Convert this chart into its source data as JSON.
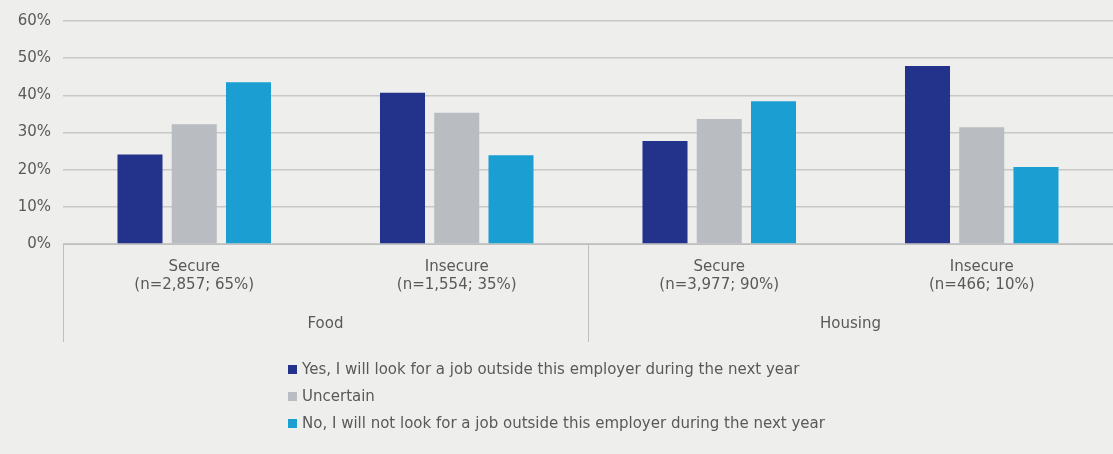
{
  "chart_data": {
    "type": "bar",
    "categories": [
      "Secure\n(n=2,857; 65%)",
      "Insecure\n(n=1,554; 35%)",
      "Secure\n(n=3,977; 90%)",
      "Insecure\n(n=466; 10%)"
    ],
    "annotations": [
      "Food",
      "Housing"
    ],
    "series": [
      {
        "name": "Yes, I will look for a job outside this employer during the next year",
        "color": "#23328a",
        "values": [
          24.1,
          40.7,
          27.7,
          47.9
        ]
      },
      {
        "name": "Uncertain",
        "color": "#b9bdc1",
        "values": [
          32.2,
          35.3,
          33.6,
          31.4
        ]
      },
      {
        "name": "No, I will not look for a job outside this employer during the next year",
        "color": "#1b9fd3",
        "values": [
          43.5,
          23.9,
          38.4,
          20.7
        ]
      }
    ],
    "ylim": [
      0,
      60
    ],
    "yticks": [
      {
        "value": 0,
        "label": "0%"
      },
      {
        "value": 10,
        "label": "10%"
      },
      {
        "value": 20,
        "label": "20%"
      },
      {
        "value": 30,
        "label": "30%"
      },
      {
        "value": 40,
        "label": "40%"
      },
      {
        "value": 50,
        "label": "50%"
      },
      {
        "value": 60,
        "label": "60%"
      }
    ],
    "grid": "y",
    "legend": "bottom"
  }
}
